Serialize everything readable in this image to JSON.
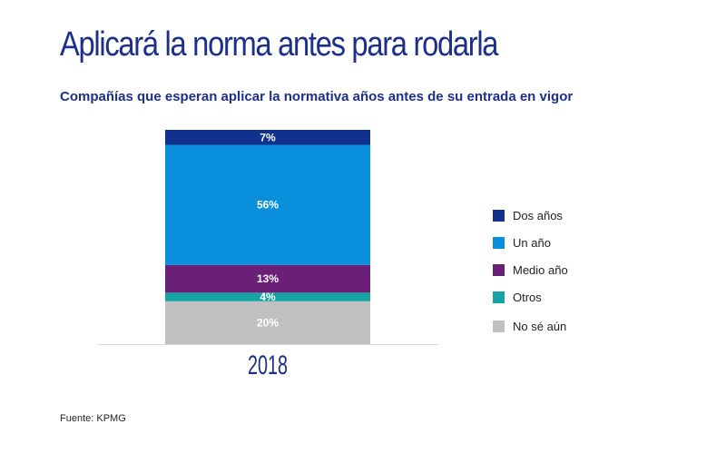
{
  "title": "Aplicará la norma antes para rodarla",
  "subtitle": "Compañías que esperan aplicar la normativa años antes de su entrada en vigor",
  "source": "Fuente: KPMG",
  "chart_data": {
    "type": "bar",
    "stacked": true,
    "categories": [
      "2018"
    ],
    "unit": "%",
    "ylim": [
      0,
      100
    ],
    "grid": false,
    "legend_position": "right",
    "series": [
      {
        "name": "No sé aún",
        "values": [
          20
        ],
        "label": "20%",
        "color": "#c0c0c0"
      },
      {
        "name": "Otros",
        "values": [
          4
        ],
        "label": "4%",
        "color": "#17a3a3"
      },
      {
        "name": "Medio año",
        "values": [
          13
        ],
        "label": "13%",
        "color": "#6b2077"
      },
      {
        "name": "Un año",
        "values": [
          56
        ],
        "label": "56%",
        "color": "#0a8fdc"
      },
      {
        "name": "Dos años",
        "values": [
          7
        ],
        "label": "7%",
        "color": "#12318e"
      }
    ],
    "legend_order": [
      "Dos años",
      "Un año",
      "Medio año",
      "Otros",
      "No sé aún"
    ]
  }
}
